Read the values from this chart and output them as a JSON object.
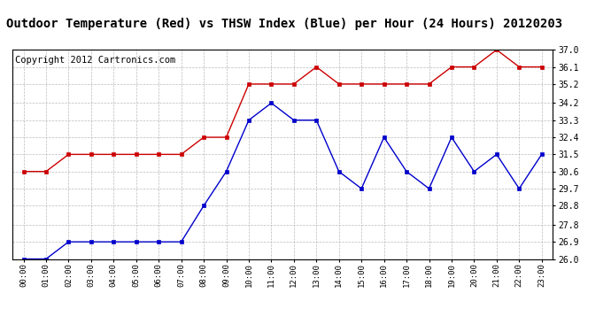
{
  "title": "Outdoor Temperature (Red) vs THSW Index (Blue) per Hour (24 Hours) 20120203",
  "copyright": "Copyright 2012 Cartronics.com",
  "x_labels": [
    "00:00",
    "01:00",
    "02:00",
    "03:00",
    "04:00",
    "05:00",
    "06:00",
    "07:00",
    "08:00",
    "09:00",
    "10:00",
    "11:00",
    "12:00",
    "13:00",
    "14:00",
    "15:00",
    "16:00",
    "17:00",
    "18:00",
    "19:00",
    "20:00",
    "21:00",
    "22:00",
    "23:00"
  ],
  "red_data": [
    30.6,
    30.6,
    31.5,
    31.5,
    31.5,
    31.5,
    31.5,
    31.5,
    32.4,
    32.4,
    35.2,
    35.2,
    35.2,
    36.1,
    35.2,
    35.2,
    35.2,
    35.2,
    35.2,
    36.1,
    36.1,
    37.0,
    36.1,
    36.1
  ],
  "blue_data": [
    26.0,
    26.0,
    26.9,
    26.9,
    26.9,
    26.9,
    26.9,
    26.9,
    28.8,
    30.6,
    33.3,
    34.2,
    33.3,
    33.3,
    30.6,
    29.7,
    32.4,
    30.6,
    29.7,
    32.4,
    30.6,
    31.5,
    29.7,
    31.5
  ],
  "ylim": [
    26.0,
    37.0
  ],
  "yticks": [
    26.0,
    26.9,
    27.8,
    28.8,
    29.7,
    30.6,
    31.5,
    32.4,
    33.3,
    34.2,
    35.2,
    36.1,
    37.0
  ],
  "bg_color": "#ffffff",
  "plot_bg_color": "#ffffff",
  "grid_color": "#aaaaaa",
  "red_color": "#cc0000",
  "blue_color": "#0000cc",
  "title_fontsize": 10,
  "copyright_fontsize": 7.5
}
